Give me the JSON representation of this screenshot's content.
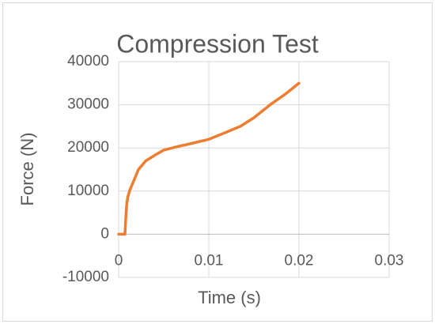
{
  "chart_data": {
    "type": "line",
    "title": "Compression Test",
    "x_label": "Time (s)",
    "y_label": "Force (N)",
    "x": [
      0,
      0.0007,
      0.0008,
      0.0009,
      0.001,
      0.0012,
      0.0015,
      0.0022,
      0.003,
      0.004,
      0.005,
      0.0065,
      0.008,
      0.01,
      0.012,
      0.0135,
      0.015,
      0.0168,
      0.0185,
      0.02
    ],
    "series": [
      {
        "name": "Force",
        "color": "#ed7d31",
        "values": [
          0,
          0,
          4000,
          7000,
          8500,
          10000,
          11500,
          15000,
          17000,
          18300,
          19500,
          20300,
          21000,
          22000,
          23700,
          25000,
          27000,
          30000,
          32500,
          35000
        ]
      }
    ],
    "xlim": [
      0,
      0.03
    ],
    "xticks": [
      0,
      0.01,
      0.02,
      0.03
    ],
    "ylim": [
      -10000,
      40000
    ],
    "yticks": [
      -10000,
      0,
      10000,
      20000,
      30000,
      40000
    ],
    "grid": true
  }
}
